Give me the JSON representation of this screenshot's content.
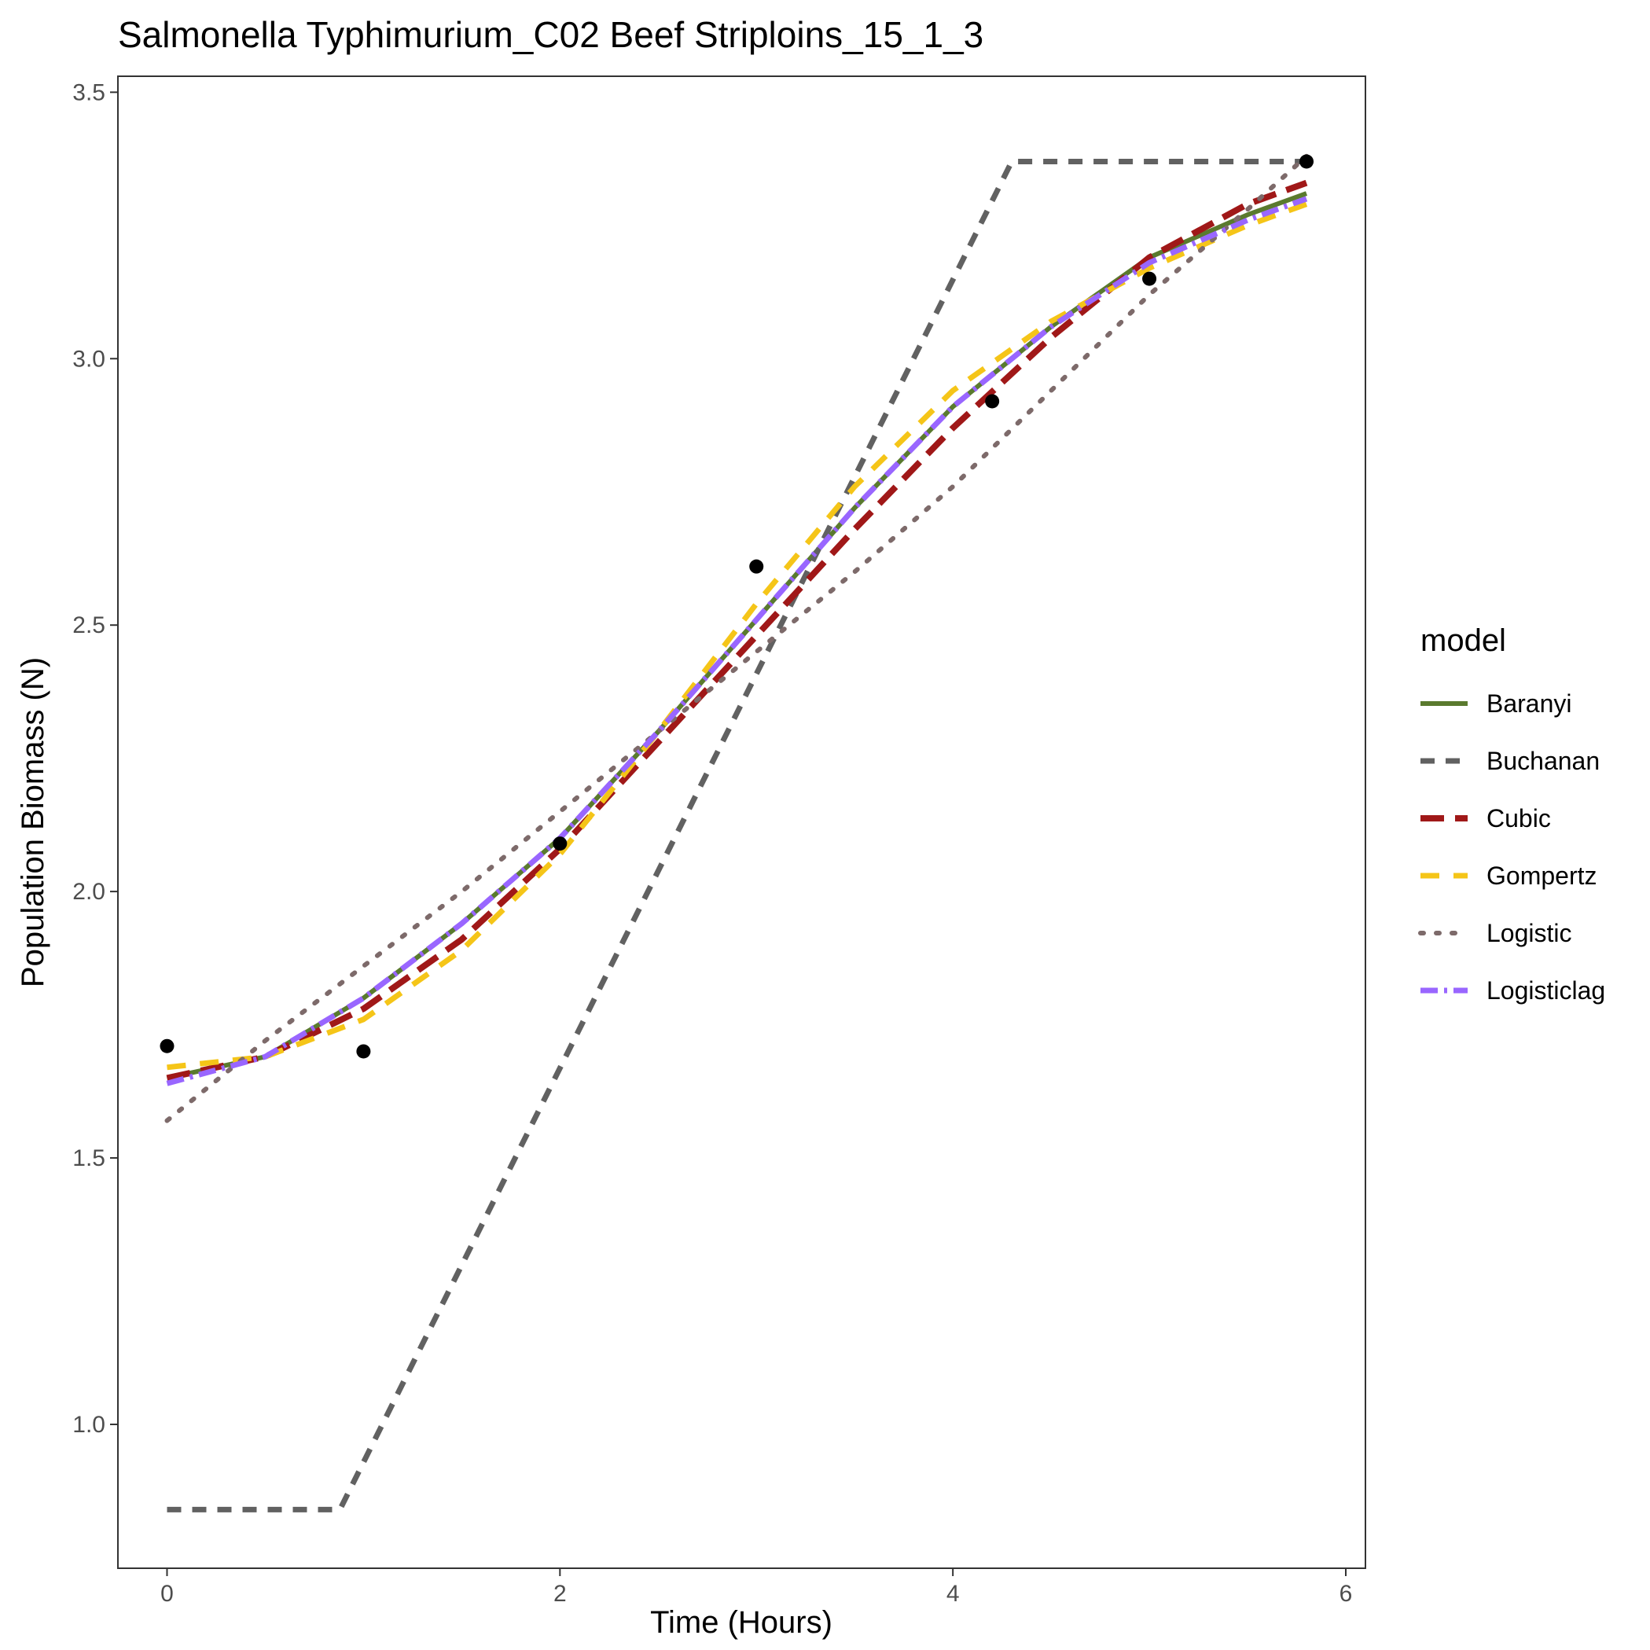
{
  "chart_data": {
    "type": "line",
    "title": "Salmonella Typhimurium_C02 Beef Striploins_15_1_3",
    "xlabel": "Time (Hours)",
    "ylabel": "Population Biomass (N)",
    "xlim": [
      -0.25,
      6.1
    ],
    "ylim": [
      0.73,
      3.53
    ],
    "x_ticks": [
      0,
      2,
      4,
      6
    ],
    "y_ticks": [
      1.0,
      1.5,
      2.0,
      2.5,
      3.0,
      3.5
    ],
    "x_tick_labels": [
      "0",
      "2",
      "4",
      "6"
    ],
    "y_tick_labels": [
      "1.0",
      "1.5",
      "2.0",
      "2.5",
      "3.0",
      "3.5"
    ],
    "grid": false,
    "legend": {
      "title": "model",
      "position": "right"
    },
    "points": {
      "x": [
        0,
        1,
        2,
        3,
        4.2,
        5,
        5.8
      ],
      "y": [
        1.71,
        1.7,
        2.09,
        2.61,
        2.92,
        3.15,
        3.37
      ],
      "color": "#000000"
    },
    "series": [
      {
        "name": "Baranyi",
        "color": "#5a7a2e",
        "dash": "solid",
        "x": [
          0,
          0.5,
          1,
          1.5,
          2,
          2.5,
          3,
          3.5,
          4,
          4.5,
          5,
          5.5,
          5.8
        ],
        "y": [
          1.65,
          1.69,
          1.8,
          1.94,
          2.1,
          2.3,
          2.51,
          2.72,
          2.91,
          3.06,
          3.19,
          3.27,
          3.31
        ]
      },
      {
        "name": "Buchanan",
        "color": "#616161",
        "dash": "short",
        "x": [
          0,
          0.88,
          4.3,
          5.8
        ],
        "y": [
          0.84,
          0.84,
          3.37,
          3.37
        ]
      },
      {
        "name": "Cubic",
        "color": "#a01818",
        "dash": "longdash",
        "x": [
          0,
          0.5,
          1,
          1.5,
          2,
          2.5,
          3,
          3.5,
          4,
          4.5,
          5,
          5.5,
          5.8
        ],
        "y": [
          1.65,
          1.69,
          1.78,
          1.91,
          2.08,
          2.28,
          2.48,
          2.68,
          2.87,
          3.04,
          3.19,
          3.29,
          3.33
        ]
      },
      {
        "name": "Gompertz",
        "color": "#f5c518",
        "dash": "dash",
        "x": [
          0,
          0.5,
          1,
          1.5,
          2,
          2.5,
          3,
          3.5,
          4,
          4.5,
          5,
          5.5,
          5.8
        ],
        "y": [
          1.67,
          1.69,
          1.76,
          1.89,
          2.07,
          2.3,
          2.54,
          2.76,
          2.94,
          3.07,
          3.17,
          3.25,
          3.29
        ]
      },
      {
        "name": "Logistic",
        "color": "#7d6a6a",
        "dash": "dotted",
        "x": [
          0,
          0.5,
          1,
          1.5,
          2,
          2.5,
          3,
          3.5,
          4,
          4.5,
          5,
          5.5,
          5.8
        ],
        "y": [
          1.57,
          1.72,
          1.86,
          2.0,
          2.15,
          2.3,
          2.45,
          2.6,
          2.76,
          2.94,
          3.12,
          3.28,
          3.38
        ]
      },
      {
        "name": "Logisticlag",
        "color": "#9966ff",
        "dash": "dashdot",
        "x": [
          0,
          0.5,
          1,
          1.5,
          2,
          2.5,
          3,
          3.5,
          4,
          4.5,
          5,
          5.5,
          5.8
        ],
        "y": [
          1.64,
          1.69,
          1.8,
          1.94,
          2.1,
          2.3,
          2.51,
          2.72,
          2.91,
          3.06,
          3.18,
          3.26,
          3.3
        ]
      }
    ]
  }
}
